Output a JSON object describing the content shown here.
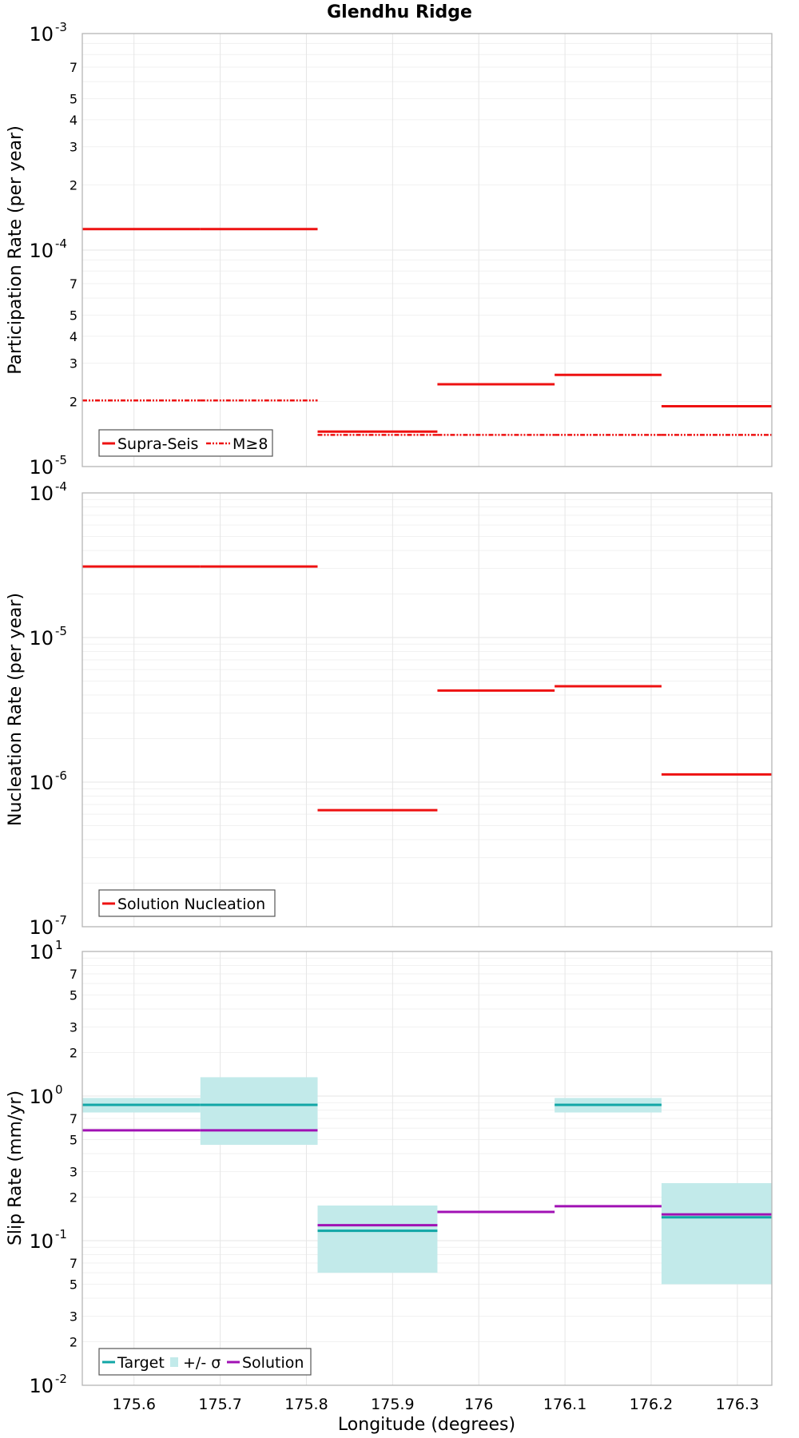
{
  "title": "Glendhu Ridge",
  "colors": {
    "supra": "#ee1111",
    "target": "#11a6a6",
    "sigma": "#c2eaea",
    "solution": "#a011b4",
    "grid_major": "#e6e6e6",
    "grid_minor": "#f1f1f1",
    "frame": "#b5b5b5"
  },
  "chart_data": [
    {
      "type": "line",
      "ylabel": "Participation Rate (per year)",
      "yscale": "log",
      "ylim": [
        1e-05,
        0.001
      ],
      "xlim": [
        175.54,
        176.34
      ],
      "grid": true,
      "legend_position": "bottom-left",
      "y_ticks": [
        {
          "value": 1e-05,
          "base": "10",
          "exp": "-5"
        },
        {
          "value": 0.0001,
          "base": "10",
          "exp": "-4"
        },
        {
          "value": 0.001,
          "base": "10",
          "exp": "-3"
        }
      ],
      "y_minor_labels": [
        2,
        3,
        4,
        5,
        7
      ],
      "series": [
        {
          "name": "Supra-Seis",
          "style": "solid",
          "segments": [
            {
              "x": [
                175.54,
                175.677
              ],
              "y": 0.000125
            },
            {
              "x": [
                175.677,
                175.813
              ],
              "y": 0.000125
            },
            {
              "x": [
                175.813,
                175.952
              ],
              "y": 1.45e-05
            },
            {
              "x": [
                175.952,
                176.088
              ],
              "y": 2.4e-05
            },
            {
              "x": [
                176.088,
                176.212
              ],
              "y": 2.65e-05
            },
            {
              "x": [
                176.212,
                176.34
              ],
              "y": 1.9e-05
            }
          ]
        },
        {
          "name": "M≥8",
          "style": "dashdot",
          "segments": [
            {
              "x": [
                175.54,
                175.677
              ],
              "y": 2.02e-05
            },
            {
              "x": [
                175.677,
                175.813
              ],
              "y": 2.02e-05
            },
            {
              "x": [
                175.813,
                175.952
              ],
              "y": 1.4e-05
            },
            {
              "x": [
                175.952,
                176.088
              ],
              "y": 1.4e-05
            },
            {
              "x": [
                176.088,
                176.212
              ],
              "y": 1.4e-05
            },
            {
              "x": [
                176.212,
                176.34
              ],
              "y": 1.4e-05
            }
          ]
        }
      ]
    },
    {
      "type": "line",
      "ylabel": "Nucleation Rate (per year)",
      "yscale": "log",
      "ylim": [
        1e-07,
        0.0001
      ],
      "xlim": [
        175.54,
        176.34
      ],
      "grid": true,
      "legend_position": "bottom-left",
      "y_ticks": [
        {
          "value": 1e-07,
          "base": "10",
          "exp": "-7"
        },
        {
          "value": 1e-06,
          "base": "10",
          "exp": "-6"
        },
        {
          "value": 1e-05,
          "base": "10",
          "exp": "-5"
        },
        {
          "value": 0.0001,
          "base": "10",
          "exp": "-4"
        }
      ],
      "y_minor_labels": [],
      "series": [
        {
          "name": "Solution Nucleation",
          "style": "solid",
          "segments": [
            {
              "x": [
                175.54,
                175.677
              ],
              "y": 3.1e-05
            },
            {
              "x": [
                175.677,
                175.813
              ],
              "y": 3.1e-05
            },
            {
              "x": [
                175.813,
                175.952
              ],
              "y": 6.4e-07
            },
            {
              "x": [
                175.952,
                176.088
              ],
              "y": 4.3e-06
            },
            {
              "x": [
                176.088,
                176.212
              ],
              "y": 4.6e-06
            },
            {
              "x": [
                176.212,
                176.34
              ],
              "y": 1.13e-06
            }
          ]
        }
      ]
    },
    {
      "type": "line",
      "ylabel": "Slip Rate (mm/yr)",
      "xlabel": "Longitude (degrees)",
      "yscale": "log",
      "ylim": [
        0.01,
        10
      ],
      "xlim": [
        175.54,
        176.34
      ],
      "grid": true,
      "legend_position": "bottom-left",
      "y_ticks": [
        {
          "value": 0.01,
          "base": "10",
          "exp": "-2"
        },
        {
          "value": 0.1,
          "base": "10",
          "exp": "-1"
        },
        {
          "value": 1,
          "base": "10",
          "exp": "0"
        },
        {
          "value": 10,
          "base": "10",
          "exp": "1"
        }
      ],
      "y_minor_labels": [
        2,
        3,
        5,
        7
      ],
      "x_ticks": [
        "175.6",
        "175.7",
        "175.8",
        "175.9",
        "176",
        "176.1",
        "176.2",
        "176.3"
      ],
      "x_tick_values": [
        175.6,
        175.7,
        175.8,
        175.9,
        176.0,
        176.1,
        176.2,
        176.3
      ],
      "sigma_bands": {
        "name": "+/- σ",
        "segments": [
          {
            "x": [
              175.54,
              175.677
            ],
            "y0": 0.77,
            "y1": 0.97
          },
          {
            "x": [
              175.677,
              175.813
            ],
            "y0": 0.46,
            "y1": 1.35
          },
          {
            "x": [
              175.813,
              175.952
            ],
            "y0": 0.06,
            "y1": 0.175
          },
          {
            "x": [
              176.088,
              176.212
            ],
            "y0": 0.77,
            "y1": 0.97
          },
          {
            "x": [
              176.212,
              176.34
            ],
            "y0": 0.05,
            "y1": 0.25
          }
        ]
      },
      "series": [
        {
          "name": "Target",
          "style": "solid",
          "color_key": "target",
          "segments": [
            {
              "x": [
                175.54,
                175.677
              ],
              "y": 0.87
            },
            {
              "x": [
                175.677,
                175.813
              ],
              "y": 0.87
            },
            {
              "x": [
                175.813,
                175.952
              ],
              "y": 0.117
            },
            {
              "x": [
                176.088,
                176.212
              ],
              "y": 0.87
            },
            {
              "x": [
                176.212,
                176.34
              ],
              "y": 0.145
            }
          ]
        },
        {
          "name": "Solution",
          "style": "solid",
          "color_key": "solution",
          "segments": [
            {
              "x": [
                175.54,
                175.677
              ],
              "y": 0.58
            },
            {
              "x": [
                175.677,
                175.813
              ],
              "y": 0.58
            },
            {
              "x": [
                175.813,
                175.952
              ],
              "y": 0.128
            },
            {
              "x": [
                175.952,
                176.088
              ],
              "y": 0.158
            },
            {
              "x": [
                176.088,
                176.212
              ],
              "y": 0.173
            },
            {
              "x": [
                176.212,
                176.34
              ],
              "y": 0.152
            }
          ]
        }
      ]
    }
  ]
}
